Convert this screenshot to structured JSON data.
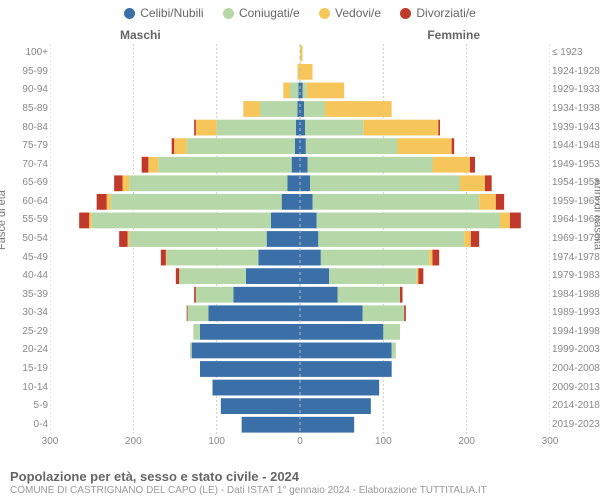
{
  "legend": {
    "items": [
      {
        "label": "Celibi/Nubili",
        "color": "#3a6fa7"
      },
      {
        "label": "Coniugati/e",
        "color": "#b6d7a8"
      },
      {
        "label": "Vedovi/e",
        "color": "#f6c65b"
      },
      {
        "label": "Divorziati/e",
        "color": "#c0392b"
      }
    ]
  },
  "gender_titles": {
    "male": "Maschi",
    "female": "Femmine"
  },
  "axis_titles": {
    "left": "Fasce di età",
    "right": "Anni di nascita"
  },
  "footer": {
    "title": "Popolazione per età, sesso e stato civile - 2024",
    "subtitle": "COMUNE DI CASTRIGNANO DEL CAPO (LE) - Dati ISTAT 1° gennaio 2024 - Elaborazione TUTTITALIA.IT"
  },
  "chart": {
    "type": "population-pyramid",
    "background_color": "#ffffff",
    "grid_color": "#cccccc",
    "center_line_color": "#bbbbbb",
    "x_max": 300,
    "x_ticks": [
      300,
      200,
      100,
      0,
      100,
      200,
      300
    ],
    "series_colors": {
      "celibi": "#3a6fa7",
      "coniugati": "#b6d7a8",
      "vedovi": "#f6c65b",
      "divorziati": "#c0392b"
    },
    "bar_gap_ratio": 0.15,
    "axis_fontsize": 10,
    "label_fontsize": 10,
    "rows": [
      {
        "age": "100+",
        "birth": "≤ 1923",
        "m": {
          "cel": 0,
          "con": 0,
          "ved": 0,
          "div": 0
        },
        "f": {
          "cel": 0,
          "con": 0,
          "ved": 3,
          "div": 0
        }
      },
      {
        "age": "95-99",
        "birth": "1924-1928",
        "m": {
          "cel": 0,
          "con": 0,
          "ved": 3,
          "div": 0
        },
        "f": {
          "cel": 0,
          "con": 0,
          "ved": 15,
          "div": 0
        }
      },
      {
        "age": "90-94",
        "birth": "1929-1933",
        "m": {
          "cel": 2,
          "con": 10,
          "ved": 8,
          "div": 0
        },
        "f": {
          "cel": 3,
          "con": 5,
          "ved": 45,
          "div": 0
        }
      },
      {
        "age": "85-89",
        "birth": "1934-1938",
        "m": {
          "cel": 3,
          "con": 45,
          "ved": 20,
          "div": 0
        },
        "f": {
          "cel": 5,
          "con": 25,
          "ved": 80,
          "div": 0
        }
      },
      {
        "age": "80-84",
        "birth": "1939-1943",
        "m": {
          "cel": 5,
          "con": 95,
          "ved": 25,
          "div": 2
        },
        "f": {
          "cel": 6,
          "con": 70,
          "ved": 90,
          "div": 2
        }
      },
      {
        "age": "75-79",
        "birth": "1944-1948",
        "m": {
          "cel": 6,
          "con": 130,
          "ved": 15,
          "div": 3
        },
        "f": {
          "cel": 7,
          "con": 110,
          "ved": 65,
          "div": 3
        }
      },
      {
        "age": "70-74",
        "birth": "1949-1953",
        "m": {
          "cel": 10,
          "con": 160,
          "ved": 12,
          "div": 8
        },
        "f": {
          "cel": 9,
          "con": 150,
          "ved": 45,
          "div": 6
        }
      },
      {
        "age": "65-69",
        "birth": "1954-1958",
        "m": {
          "cel": 15,
          "con": 190,
          "ved": 8,
          "div": 10
        },
        "f": {
          "cel": 12,
          "con": 180,
          "ved": 30,
          "div": 8
        }
      },
      {
        "age": "60-64",
        "birth": "1959-1963",
        "m": {
          "cel": 22,
          "con": 205,
          "ved": 5,
          "div": 12
        },
        "f": {
          "cel": 15,
          "con": 200,
          "ved": 20,
          "div": 10
        }
      },
      {
        "age": "55-59",
        "birth": "1964-1968",
        "m": {
          "cel": 35,
          "con": 215,
          "ved": 3,
          "div": 12
        },
        "f": {
          "cel": 20,
          "con": 220,
          "ved": 12,
          "div": 13
        }
      },
      {
        "age": "50-54",
        "birth": "1969-1973",
        "m": {
          "cel": 40,
          "con": 165,
          "ved": 2,
          "div": 10
        },
        "f": {
          "cel": 22,
          "con": 175,
          "ved": 8,
          "div": 10
        }
      },
      {
        "age": "45-49",
        "birth": "1974-1978",
        "m": {
          "cel": 50,
          "con": 110,
          "ved": 1,
          "div": 6
        },
        "f": {
          "cel": 25,
          "con": 130,
          "ved": 4,
          "div": 8
        }
      },
      {
        "age": "40-44",
        "birth": "1979-1983",
        "m": {
          "cel": 65,
          "con": 80,
          "ved": 0,
          "div": 4
        },
        "f": {
          "cel": 35,
          "con": 105,
          "ved": 2,
          "div": 6
        }
      },
      {
        "age": "35-39",
        "birth": "1984-1988",
        "m": {
          "cel": 80,
          "con": 45,
          "ved": 0,
          "div": 2
        },
        "f": {
          "cel": 45,
          "con": 75,
          "ved": 0,
          "div": 3
        }
      },
      {
        "age": "30-34",
        "birth": "1989-1993",
        "m": {
          "cel": 110,
          "con": 25,
          "ved": 0,
          "div": 1
        },
        "f": {
          "cel": 75,
          "con": 50,
          "ved": 0,
          "div": 2
        }
      },
      {
        "age": "25-29",
        "birth": "1994-1998",
        "m": {
          "cel": 120,
          "con": 8,
          "ved": 0,
          "div": 0
        },
        "f": {
          "cel": 100,
          "con": 20,
          "ved": 0,
          "div": 0
        }
      },
      {
        "age": "20-24",
        "birth": "1999-2003",
        "m": {
          "cel": 130,
          "con": 2,
          "ved": 0,
          "div": 0
        },
        "f": {
          "cel": 110,
          "con": 5,
          "ved": 0,
          "div": 0
        }
      },
      {
        "age": "15-19",
        "birth": "2004-2008",
        "m": {
          "cel": 120,
          "con": 0,
          "ved": 0,
          "div": 0
        },
        "f": {
          "cel": 110,
          "con": 0,
          "ved": 0,
          "div": 0
        }
      },
      {
        "age": "10-14",
        "birth": "2009-2013",
        "m": {
          "cel": 105,
          "con": 0,
          "ved": 0,
          "div": 0
        },
        "f": {
          "cel": 95,
          "con": 0,
          "ved": 0,
          "div": 0
        }
      },
      {
        "age": "5-9",
        "birth": "2014-2018",
        "m": {
          "cel": 95,
          "con": 0,
          "ved": 0,
          "div": 0
        },
        "f": {
          "cel": 85,
          "con": 0,
          "ved": 0,
          "div": 0
        }
      },
      {
        "age": "0-4",
        "birth": "2019-2023",
        "m": {
          "cel": 70,
          "con": 0,
          "ved": 0,
          "div": 0
        },
        "f": {
          "cel": 65,
          "con": 0,
          "ved": 0,
          "div": 0
        }
      }
    ]
  }
}
